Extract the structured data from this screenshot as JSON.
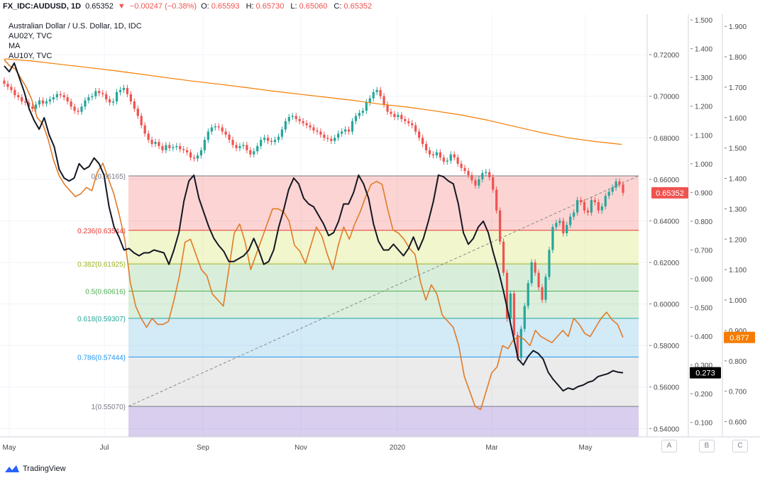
{
  "header": {
    "symbol": "FX_IDC:AUDUSD, 1D",
    "last": "0.65352",
    "arrow": "▼",
    "change": "−0.00247 (−0.38%)",
    "o_label": "O:",
    "o": "0.65593",
    "h_label": "H:",
    "h": "0.65730",
    "l_label": "L:",
    "l": "0.65060",
    "c_label": "C:",
    "c": "0.65352"
  },
  "legend": {
    "title": "Australian Dollar / U.S. Dollar, 1D, IDC",
    "line2": "AU02Y, TVC",
    "line3": "MA",
    "line4": "AU10Y, TVC"
  },
  "footer": {
    "brand": "TradingView"
  },
  "axis_buttons": [
    "A",
    "B",
    "C"
  ],
  "colors": {
    "up": "#26a69a",
    "down": "#ef5350",
    "ma": "#f57c00",
    "au02y": "#131722",
    "au10y": "#e07b28"
  },
  "chart_data": {
    "type": "line",
    "x_labels": [
      "May",
      "Jul",
      "Sep",
      "Nov",
      "2020",
      "Mar",
      "May"
    ],
    "y_axis_a": {
      "ticks": [
        "0.72000",
        "0.70000",
        "0.68000",
        "0.66000",
        "0.64000",
        "0.62000",
        "0.60000",
        "0.58000",
        "0.56000",
        "0.54000"
      ],
      "range": [
        0.536,
        0.7395
      ]
    },
    "y_axis_b": {
      "ticks": [
        "1.500",
        "1.400",
        "1.300",
        "1.200",
        "1.100",
        "1.000",
        "0.900",
        "0.800",
        "0.700",
        "0.600",
        "0.500",
        "0.400",
        "0.300",
        "0.200",
        "0.100"
      ],
      "range": [
        0.05,
        1.52
      ]
    },
    "y_axis_c": {
      "ticks": [
        "1.900",
        "1.800",
        "1.700",
        "1.600",
        "1.500",
        "1.400",
        "1.300",
        "1.200",
        "1.100",
        "1.000",
        "0.900",
        "0.800",
        "0.700",
        "0.600"
      ],
      "range": [
        0.55,
        1.94
      ]
    },
    "fib_levels": [
      {
        "ratio": "0",
        "value": 0.66165,
        "label": "0(0.66165)"
      },
      {
        "ratio": "0.236",
        "value": 0.63544,
        "label": "0.236(0.63544)"
      },
      {
        "ratio": "0.382",
        "value": 0.61925,
        "label": "0.382(0.61925)"
      },
      {
        "ratio": "0.5",
        "value": 0.60616,
        "label": "0.5(0.60616)"
      },
      {
        "ratio": "0.618",
        "value": 0.59307,
        "label": "0.618(0.59307)"
      },
      {
        "ratio": "0.786",
        "value": 0.57444,
        "label": "0.786(0.57444)"
      },
      {
        "ratio": "1",
        "value": 0.5507,
        "label": "1(0.55070)"
      }
    ],
    "badges": [
      {
        "axis": "A",
        "value": 0.65352,
        "label": "0.65352",
        "color": "#ef5350"
      },
      {
        "axis": "B",
        "value": 0.273,
        "label": "0.273",
        "color": "#000000"
      },
      {
        "axis": "C",
        "value": 0.877,
        "label": "0.877",
        "color": "#f57c00"
      }
    ],
    "series": [
      {
        "name": "AUDUSD",
        "kind": "candles",
        "axis": "A",
        "close": [
          0.706,
          0.7045,
          0.703,
          0.7005,
          0.6995,
          0.6975,
          0.697,
          0.695,
          0.694,
          0.696,
          0.698,
          0.6965,
          0.6975,
          0.6985,
          0.6995,
          0.701,
          0.7005,
          0.6995,
          0.6975,
          0.695,
          0.693,
          0.6925,
          0.695,
          0.698,
          0.6995,
          0.7,
          0.7025,
          0.7015,
          0.701,
          0.6985,
          0.697,
          0.6975,
          0.702,
          0.703,
          0.704,
          0.701,
          0.6975,
          0.694,
          0.6905,
          0.686,
          0.682,
          0.679,
          0.677,
          0.678,
          0.676,
          0.674,
          0.6765,
          0.675,
          0.6755,
          0.676,
          0.6745,
          0.674,
          0.673,
          0.6705,
          0.67,
          0.6715,
          0.674,
          0.679,
          0.683,
          0.685,
          0.6855,
          0.685,
          0.683,
          0.6815,
          0.679,
          0.6765,
          0.675,
          0.676,
          0.6765,
          0.674,
          0.672,
          0.6735,
          0.676,
          0.679,
          0.68,
          0.6785,
          0.678,
          0.679,
          0.6805,
          0.684,
          0.688,
          0.69,
          0.6905,
          0.689,
          0.688,
          0.687,
          0.686,
          0.685,
          0.6835,
          0.683,
          0.6815,
          0.68,
          0.6795,
          0.6785,
          0.68,
          0.682,
          0.683,
          0.684,
          0.683,
          0.688,
          0.6905,
          0.692,
          0.693,
          0.697,
          0.699,
          0.702,
          0.703,
          0.7,
          0.696,
          0.6925,
          0.6915,
          0.69,
          0.691,
          0.689,
          0.688,
          0.687,
          0.686,
          0.683,
          0.68,
          0.677,
          0.674,
          0.672,
          0.6715,
          0.673,
          0.6705,
          0.6685,
          0.669,
          0.672,
          0.6705,
          0.6675,
          0.6655,
          0.664,
          0.662,
          0.6595,
          0.657,
          0.66,
          0.663,
          0.6635,
          0.661,
          0.655,
          0.645,
          0.63,
          0.615,
          0.593,
          0.605,
          0.585,
          0.574,
          0.588,
          0.599,
          0.61,
          0.62,
          0.615,
          0.608,
          0.602,
          0.613,
          0.626,
          0.637,
          0.639,
          0.64,
          0.634,
          0.638,
          0.642,
          0.644,
          0.65,
          0.649,
          0.645,
          0.644,
          0.65,
          0.649,
          0.645,
          0.647,
          0.652,
          0.654,
          0.656,
          0.659,
          0.6575,
          0.6535
        ]
      },
      {
        "name": "AU02Y",
        "kind": "line",
        "axis": "B",
        "values": [
          1.34,
          1.32,
          1.35,
          1.3,
          1.25,
          1.19,
          1.15,
          1.12,
          1.16,
          1.1,
          1.06,
          0.98,
          0.95,
          0.94,
          0.95,
          1.0,
          0.98,
          0.99,
          1.02,
          1.0,
          0.96,
          0.85,
          0.78,
          0.745,
          0.7,
          0.705,
          0.69,
          0.68,
          0.69,
          0.69,
          0.7,
          0.695,
          0.69,
          0.65,
          0.7,
          0.76,
          0.87,
          0.94,
          0.96,
          0.88,
          0.83,
          0.78,
          0.74,
          0.715,
          0.695,
          0.66,
          0.66,
          0.67,
          0.68,
          0.7,
          0.74,
          0.7,
          0.65,
          0.66,
          0.7,
          0.78,
          0.84,
          0.91,
          0.95,
          0.93,
          0.88,
          0.86,
          0.85,
          0.82,
          0.79,
          0.75,
          0.76,
          0.8,
          0.86,
          0.86,
          0.9,
          0.96,
          0.93,
          0.88,
          0.79,
          0.73,
          0.7,
          0.7,
          0.72,
          0.7,
          0.68,
          0.705,
          0.745,
          0.7,
          0.74,
          0.8,
          0.87,
          0.96,
          0.955,
          0.94,
          0.93,
          0.86,
          0.76,
          0.72,
          0.74,
          0.78,
          0.8,
          0.76,
          0.69,
          0.63,
          0.56,
          0.48,
          0.4,
          0.32,
          0.3,
          0.33,
          0.35,
          0.34,
          0.32,
          0.275,
          0.25,
          0.23,
          0.21,
          0.22,
          0.215,
          0.225,
          0.23,
          0.24,
          0.245,
          0.26,
          0.265,
          0.27,
          0.28,
          0.275,
          0.273
        ]
      },
      {
        "name": "AU10Y",
        "kind": "line",
        "axis": "C",
        "values": [
          1.79,
          1.77,
          1.76,
          1.73,
          1.7,
          1.66,
          1.6,
          1.58,
          1.53,
          1.46,
          1.41,
          1.38,
          1.36,
          1.34,
          1.35,
          1.37,
          1.36,
          1.42,
          1.45,
          1.4,
          1.35,
          1.28,
          1.2,
          1.06,
          0.98,
          0.94,
          0.91,
          0.94,
          0.92,
          0.92,
          0.93,
          1.0,
          1.08,
          1.19,
          1.2,
          1.15,
          1.1,
          1.08,
          1.02,
          1.0,
          0.98,
          1.1,
          1.22,
          1.25,
          1.19,
          1.1,
          1.15,
          1.2,
          1.25,
          1.3,
          1.3,
          1.29,
          1.26,
          1.18,
          1.16,
          1.12,
          1.18,
          1.24,
          1.21,
          1.15,
          1.1,
          1.18,
          1.24,
          1.2,
          1.25,
          1.29,
          1.34,
          1.38,
          1.39,
          1.38,
          1.3,
          1.23,
          1.22,
          1.2,
          1.17,
          1.15,
          1.06,
          1.0,
          1.05,
          1.02,
          0.95,
          0.93,
          0.91,
          0.85,
          0.75,
          0.7,
          0.65,
          0.64,
          0.7,
          0.76,
          0.78,
          0.85,
          0.84,
          0.87,
          0.88,
          0.87,
          0.85,
          0.9,
          0.88,
          0.87,
          0.86,
          0.88,
          0.9,
          0.88,
          0.94,
          0.92,
          0.89,
          0.88,
          0.91,
          0.94,
          0.96,
          0.935,
          0.92,
          0.877
        ]
      },
      {
        "name": "MA",
        "kind": "line",
        "axis": "A",
        "values": [
          0.718,
          0.717,
          0.7155,
          0.714,
          0.7125,
          0.7108,
          0.709,
          0.7073,
          0.7058,
          0.7042,
          0.7025,
          0.701,
          0.6995,
          0.698,
          0.6962,
          0.6948,
          0.693,
          0.691,
          0.6885,
          0.6855,
          0.6825,
          0.68,
          0.6782,
          0.6768
        ]
      }
    ]
  }
}
